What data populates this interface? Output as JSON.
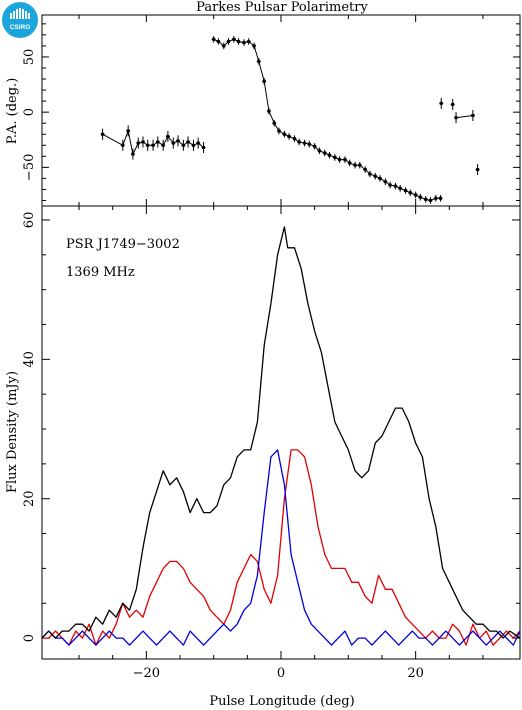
{
  "title": "Parkes Pulsar Polarimetry",
  "logo_text": "CSIRO",
  "colors": {
    "total": "#000000",
    "linear": "#e00000",
    "circular": "#0000e0",
    "logo": "#1aa6dd"
  },
  "chart_data": [
    {
      "type": "scatter",
      "panel": "position-angle",
      "ylabel": "P.A. (deg.)",
      "xlim": [
        -35.5,
        35.5
      ],
      "ylim": [
        -85,
        88
      ],
      "yticks": [
        -50,
        0,
        50
      ],
      "points": [
        [
          -26.5,
          -20
        ],
        [
          -23.5,
          -30
        ],
        [
          -22.7,
          -17
        ],
        [
          -22.0,
          -38
        ],
        [
          -21.2,
          -28
        ],
        [
          -20.5,
          -27
        ],
        [
          -19.8,
          -30
        ],
        [
          -19.0,
          -30
        ],
        [
          -18.3,
          -27
        ],
        [
          -17.5,
          -30
        ],
        [
          -16.8,
          -22
        ],
        [
          -16.0,
          -28
        ],
        [
          -15.3,
          -26
        ],
        [
          -14.5,
          -30
        ],
        [
          -13.8,
          -27
        ],
        [
          -13.0,
          -30
        ],
        [
          -12.3,
          -28
        ],
        [
          -11.5,
          -32
        ],
        [
          -10.0,
          66
        ],
        [
          -9.3,
          64
        ],
        [
          -8.5,
          60
        ],
        [
          -7.8,
          64
        ],
        [
          -7.0,
          66
        ],
        [
          -6.3,
          64
        ],
        [
          -5.5,
          63
        ],
        [
          -4.8,
          64
        ],
        [
          -4.0,
          60
        ],
        [
          -3.3,
          46
        ],
        [
          -2.5,
          28
        ],
        [
          -1.8,
          1
        ],
        [
          -1.0,
          -10
        ],
        [
          -0.3,
          -17
        ],
        [
          0.5,
          -20
        ],
        [
          1.2,
          -22
        ],
        [
          2.0,
          -24
        ],
        [
          2.7,
          -27
        ],
        [
          3.5,
          -28
        ],
        [
          4.2,
          -29
        ],
        [
          5.0,
          -31
        ],
        [
          5.7,
          -35
        ],
        [
          6.5,
          -37
        ],
        [
          7.2,
          -39
        ],
        [
          8.0,
          -41
        ],
        [
          8.7,
          -43
        ],
        [
          9.5,
          -43
        ],
        [
          10.2,
          -46
        ],
        [
          11.0,
          -48
        ],
        [
          11.7,
          -48
        ],
        [
          12.5,
          -52
        ],
        [
          13.2,
          -56
        ],
        [
          14.0,
          -58
        ],
        [
          14.7,
          -60
        ],
        [
          15.5,
          -63
        ],
        [
          16.2,
          -66
        ],
        [
          17.0,
          -67
        ],
        [
          17.7,
          -69
        ],
        [
          18.5,
          -71
        ],
        [
          19.2,
          -73
        ],
        [
          20.0,
          -75
        ],
        [
          20.7,
          -77
        ],
        [
          21.5,
          -79
        ],
        [
          22.2,
          -80
        ],
        [
          23.0,
          -78
        ],
        [
          23.7,
          -78
        ],
        [
          23.8,
          8
        ],
        [
          25.5,
          7
        ],
        [
          26.0,
          -5
        ],
        [
          28.5,
          -3
        ],
        [
          29.2,
          -52
        ]
      ],
      "segments": [
        [
          0,
          17
        ],
        [
          18,
          63
        ],
        [
          66,
          67
        ],
        [
          68,
          69
        ]
      ]
    },
    {
      "type": "line",
      "panel": "profile",
      "xlabel": "Pulse Longitude (deg)",
      "ylabel": "Flux Density (mJy)",
      "xlim": [
        -35.5,
        35.5
      ],
      "ylim": [
        -3,
        62
      ],
      "xticks": [
        -20,
        0,
        20
      ],
      "yticks": [
        0,
        20,
        40,
        60
      ],
      "annotations": [
        "PSR J1749−3002",
        "1369 MHz"
      ],
      "series": [
        {
          "color": "#000000",
          "points": [
            [
              -35.5,
              0
            ],
            [
              -34.5,
              1
            ],
            [
              -33.5,
              0
            ],
            [
              -32.5,
              1
            ],
            [
              -31.5,
              1
            ],
            [
              -30.5,
              2
            ],
            [
              -29.5,
              2
            ],
            [
              -28.5,
              1
            ],
            [
              -27.5,
              3
            ],
            [
              -26.5,
              2
            ],
            [
              -25.5,
              4
            ],
            [
              -24.5,
              3
            ],
            [
              -23.5,
              5
            ],
            [
              -22.5,
              4
            ],
            [
              -21.5,
              7
            ],
            [
              -20.5,
              13
            ],
            [
              -19.5,
              18
            ],
            [
              -18.5,
              21
            ],
            [
              -17.5,
              24
            ],
            [
              -16.5,
              22
            ],
            [
              -15.5,
              23
            ],
            [
              -14.5,
              21
            ],
            [
              -13.5,
              18
            ],
            [
              -12.5,
              20
            ],
            [
              -11.5,
              18
            ],
            [
              -10.5,
              18
            ],
            [
              -9.5,
              19
            ],
            [
              -8.5,
              22
            ],
            [
              -7.5,
              23
            ],
            [
              -6.5,
              26
            ],
            [
              -5.5,
              27
            ],
            [
              -4.5,
              27
            ],
            [
              -3.5,
              31
            ],
            [
              -2.5,
              42
            ],
            [
              -1.5,
              48
            ],
            [
              -0.5,
              55
            ],
            [
              0.5,
              59
            ],
            [
              1.0,
              56
            ],
            [
              2.0,
              56
            ],
            [
              3.0,
              53
            ],
            [
              4.0,
              48
            ],
            [
              5.0,
              44
            ],
            [
              6.0,
              41
            ],
            [
              7.0,
              36
            ],
            [
              8.0,
              31
            ],
            [
              9.0,
              29
            ],
            [
              10.0,
              27
            ],
            [
              11.0,
              24
            ],
            [
              12.0,
              23
            ],
            [
              13.0,
              24
            ],
            [
              14.0,
              28
            ],
            [
              15.0,
              29
            ],
            [
              16.0,
              31
            ],
            [
              17.0,
              33
            ],
            [
              18.0,
              33
            ],
            [
              19.0,
              31
            ],
            [
              20.0,
              28
            ],
            [
              21.0,
              26
            ],
            [
              22.0,
              20
            ],
            [
              23.0,
              16
            ],
            [
              24.0,
              10
            ],
            [
              25.0,
              8
            ],
            [
              26.0,
              6
            ],
            [
              27.0,
              4
            ],
            [
              28.0,
              3
            ],
            [
              29.0,
              2
            ],
            [
              30.0,
              2
            ],
            [
              31.0,
              1
            ],
            [
              32.0,
              1
            ],
            [
              33.0,
              0
            ],
            [
              34.0,
              1
            ],
            [
              35.5,
              0
            ]
          ]
        },
        {
          "color": "#e00000",
          "points": [
            [
              -35.5,
              0
            ],
            [
              -34.5,
              0
            ],
            [
              -33.5,
              1
            ],
            [
              -32.5,
              0
            ],
            [
              -31.5,
              -1
            ],
            [
              -30.5,
              1
            ],
            [
              -29.5,
              0
            ],
            [
              -28.5,
              2
            ],
            [
              -27.5,
              -1
            ],
            [
              -26.5,
              1
            ],
            [
              -25.5,
              0
            ],
            [
              -24.5,
              2
            ],
            [
              -23.5,
              5
            ],
            [
              -22.5,
              3
            ],
            [
              -21.5,
              4
            ],
            [
              -20.5,
              3
            ],
            [
              -19.5,
              6
            ],
            [
              -18.5,
              8
            ],
            [
              -17.5,
              10
            ],
            [
              -16.5,
              11
            ],
            [
              -15.5,
              11
            ],
            [
              -14.5,
              10
            ],
            [
              -13.5,
              8
            ],
            [
              -12.5,
              7
            ],
            [
              -11.5,
              6
            ],
            [
              -10.5,
              4
            ],
            [
              -9.5,
              3
            ],
            [
              -8.5,
              2
            ],
            [
              -7.5,
              4
            ],
            [
              -6.5,
              8
            ],
            [
              -5.5,
              10
            ],
            [
              -4.5,
              12
            ],
            [
              -3.5,
              11
            ],
            [
              -2.5,
              7
            ],
            [
              -1.5,
              5
            ],
            [
              -0.5,
              9
            ],
            [
              0.5,
              20
            ],
            [
              1.5,
              27
            ],
            [
              2.5,
              27
            ],
            [
              3.5,
              26
            ],
            [
              4.5,
              22
            ],
            [
              5.5,
              16
            ],
            [
              6.5,
              12
            ],
            [
              7.5,
              10
            ],
            [
              8.5,
              10
            ],
            [
              9.5,
              10
            ],
            [
              10.5,
              8
            ],
            [
              11.5,
              8
            ],
            [
              12.5,
              6
            ],
            [
              13.5,
              5
            ],
            [
              14.5,
              9
            ],
            [
              15.5,
              7
            ],
            [
              16.5,
              7
            ],
            [
              17.5,
              5
            ],
            [
              18.5,
              3
            ],
            [
              19.5,
              2
            ],
            [
              20.5,
              1
            ],
            [
              21.5,
              0
            ],
            [
              22.5,
              1
            ],
            [
              23.5,
              0
            ],
            [
              24.5,
              0
            ],
            [
              25.5,
              2
            ],
            [
              26.5,
              1
            ],
            [
              27.5,
              -1
            ],
            [
              28.5,
              2
            ],
            [
              29.5,
              0
            ],
            [
              30.5,
              1
            ],
            [
              31.5,
              -1
            ],
            [
              32.5,
              0
            ],
            [
              33.5,
              1
            ],
            [
              34.5,
              0
            ],
            [
              35.5,
              1
            ]
          ]
        },
        {
          "color": "#0000e0",
          "points": [
            [
              -35.5,
              0
            ],
            [
              -34.5,
              1
            ],
            [
              -33.5,
              0
            ],
            [
              -32.5,
              0
            ],
            [
              -31.5,
              -1
            ],
            [
              -30.5,
              0
            ],
            [
              -29.5,
              1
            ],
            [
              -28.5,
              0
            ],
            [
              -27.5,
              -1
            ],
            [
              -26.5,
              0
            ],
            [
              -25.5,
              1
            ],
            [
              -24.5,
              0
            ],
            [
              -23.5,
              0
            ],
            [
              -22.5,
              -1
            ],
            [
              -21.5,
              0
            ],
            [
              -20.5,
              1
            ],
            [
              -19.5,
              0
            ],
            [
              -18.5,
              -1
            ],
            [
              -17.5,
              0
            ],
            [
              -16.5,
              1
            ],
            [
              -15.5,
              0
            ],
            [
              -14.5,
              -1
            ],
            [
              -13.5,
              1
            ],
            [
              -12.5,
              0
            ],
            [
              -11.5,
              -1
            ],
            [
              -10.5,
              0
            ],
            [
              -9.5,
              1
            ],
            [
              -8.5,
              2
            ],
            [
              -7.5,
              1
            ],
            [
              -6.5,
              2
            ],
            [
              -5.5,
              4
            ],
            [
              -4.5,
              5
            ],
            [
              -3.5,
              9
            ],
            [
              -2.5,
              18
            ],
            [
              -1.5,
              26
            ],
            [
              -0.5,
              27
            ],
            [
              0.5,
              22
            ],
            [
              1.5,
              12
            ],
            [
              2.5,
              8
            ],
            [
              3.5,
              4
            ],
            [
              4.5,
              2
            ],
            [
              5.5,
              1
            ],
            [
              6.5,
              0
            ],
            [
              7.5,
              -1
            ],
            [
              8.5,
              0
            ],
            [
              9.5,
              1
            ],
            [
              10.5,
              -1
            ],
            [
              11.5,
              0
            ],
            [
              12.5,
              0
            ],
            [
              13.5,
              -1
            ],
            [
              14.5,
              0
            ],
            [
              15.5,
              1
            ],
            [
              16.5,
              0
            ],
            [
              17.5,
              -1
            ],
            [
              18.5,
              0
            ],
            [
              19.5,
              1
            ],
            [
              20.5,
              0
            ],
            [
              21.5,
              0
            ],
            [
              22.5,
              -1
            ],
            [
              23.5,
              0
            ],
            [
              24.5,
              1
            ],
            [
              25.5,
              0
            ],
            [
              26.5,
              -1
            ],
            [
              27.5,
              0
            ],
            [
              28.5,
              1
            ],
            [
              29.5,
              0
            ],
            [
              30.5,
              -1
            ],
            [
              31.5,
              0
            ],
            [
              32.5,
              1
            ],
            [
              33.5,
              0
            ],
            [
              34.5,
              -1
            ],
            [
              35.5,
              1
            ]
          ]
        }
      ]
    }
  ]
}
